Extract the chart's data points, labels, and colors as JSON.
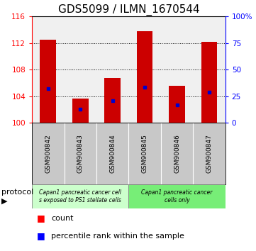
{
  "title": "GDS5099 / ILMN_1670544",
  "samples": [
    "GSM900842",
    "GSM900843",
    "GSM900844",
    "GSM900845",
    "GSM900846",
    "GSM900847"
  ],
  "bar_tops": [
    112.5,
    103.7,
    106.8,
    113.8,
    105.6,
    112.2
  ],
  "bar_bottom": 100,
  "percentile_values": [
    105.2,
    102.1,
    103.3,
    105.4,
    102.7,
    104.6
  ],
  "ylim_left": [
    100,
    116
  ],
  "ylim_right": [
    0,
    100
  ],
  "yticks_left": [
    100,
    104,
    108,
    112,
    116
  ],
  "yticks_right": [
    0,
    25,
    50,
    75,
    100
  ],
  "bar_color": "#cc0000",
  "marker_color": "#0000cc",
  "bar_width": 0.5,
  "group1_color": "#ccffcc",
  "group2_color": "#77ee77",
  "group1_label": "Capan1 pancreatic cancer cell\ns exposed to PS1 stellate cells",
  "group2_label": "Capan1 pancreatic cancer\ncells only",
  "legend_count_label": "count",
  "legend_percentile_label": "percentile rank within the sample",
  "protocol_label": "protocol",
  "sample_bg": "#c8c8c8",
  "plot_bg": "#f0f0f0",
  "title_fontsize": 11,
  "tick_fontsize": 7.5,
  "sample_fontsize": 6.5,
  "group_fontsize": 5.5,
  "legend_fontsize": 8,
  "protocol_fontsize": 8
}
